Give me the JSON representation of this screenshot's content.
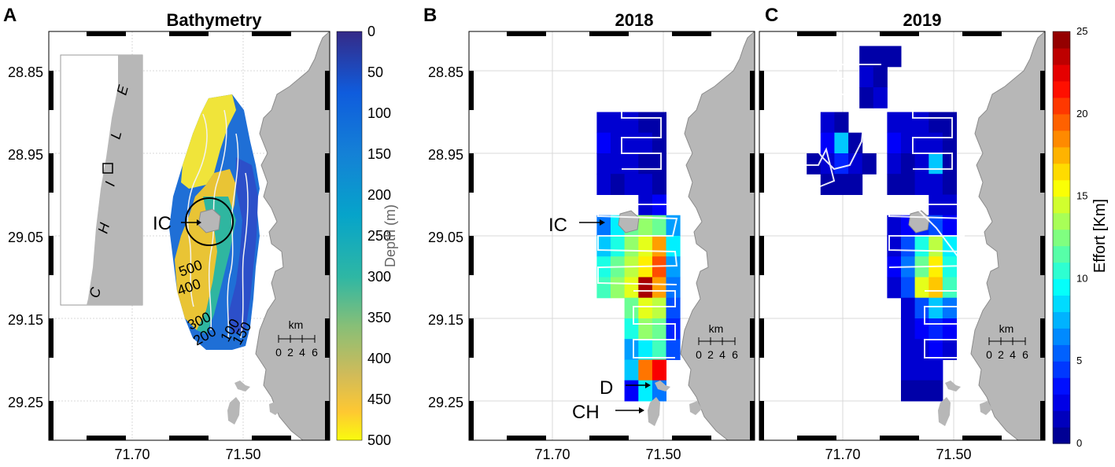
{
  "panels": {
    "a": {
      "letter": "A",
      "title": "Bathymetry"
    },
    "b": {
      "letter": "B",
      "title": "2018"
    },
    "c": {
      "letter": "C",
      "title": "2019"
    }
  },
  "inset": {
    "letters": [
      "E",
      "L",
      "I",
      "H",
      "C"
    ]
  },
  "labels": {
    "ic": "IC",
    "d": "D",
    "ch": "CH"
  },
  "scalebar": {
    "unit": "km",
    "ticks": [
      "0",
      "2",
      "4",
      "6"
    ]
  },
  "colors": {
    "land": "#b7b7b7",
    "coast": "#8c8c8c",
    "grid": "#d9d9d9",
    "contour": "#f2f2f2"
  },
  "chart_data": [
    {
      "type": "heatmap",
      "panel": "A",
      "title": "Bathymetry",
      "colorbar_label": "Depth (m)",
      "colorbar_ticks": [
        "0",
        "50",
        "100",
        "150",
        "200",
        "250",
        "300",
        "350",
        "400",
        "450",
        "500"
      ],
      "colorbar_range": [
        0,
        500
      ],
      "colorbar_reversed": true,
      "colormap": "parula",
      "contour_labels": [
        "500",
        "400",
        "300",
        "200",
        "100",
        "150"
      ],
      "x_ticks": [
        "71.70",
        "71.50"
      ],
      "y_ticks": [
        "28.85",
        "28.95",
        "29.05",
        "29.15",
        "29.25"
      ]
    },
    {
      "type": "heatmap",
      "panel": "B",
      "title": "2018",
      "x_ticks": [
        "71.70",
        "71.50"
      ],
      "y_ticks": [
        "28.85",
        "28.95",
        "29.05",
        "29.15",
        "29.25"
      ],
      "colormap": "jet",
      "value_range": [
        0,
        25
      ],
      "lat_start": 28.9,
      "lon_start": 71.62,
      "cell_deg": 0.025,
      "rows": [
        [
          2,
          2,
          2,
          1,
          1,
          null,
          null
        ],
        [
          3,
          2,
          2,
          2,
          1,
          null,
          null
        ],
        [
          2,
          2,
          2,
          1,
          1,
          null,
          null
        ],
        [
          2,
          1,
          2,
          2,
          1,
          null,
          null
        ],
        [
          null,
          null,
          null,
          2,
          3,
          null,
          null
        ],
        [
          6,
          9,
          12,
          13,
          12,
          7,
          null
        ],
        [
          8,
          10,
          13,
          15,
          18,
          9,
          null
        ],
        [
          10,
          12,
          14,
          16,
          20,
          7,
          null
        ],
        [
          11,
          13,
          15,
          24,
          18,
          6,
          null
        ],
        [
          null,
          null,
          12,
          15,
          14,
          5,
          null
        ],
        [
          null,
          null,
          10,
          13,
          12,
          4,
          null
        ],
        [
          null,
          null,
          7,
          9,
          11,
          5,
          null
        ],
        [
          null,
          null,
          8,
          19,
          22,
          null,
          null
        ],
        [
          null,
          null,
          3,
          9,
          6,
          null,
          null
        ]
      ]
    },
    {
      "type": "heatmap",
      "panel": "C",
      "title": "2019",
      "x_ticks": [
        "71.70",
        "71.50"
      ],
      "y_ticks": [
        "28.85",
        "28.95",
        "29.05",
        "29.15",
        "29.25"
      ],
      "colormap": "jet",
      "value_range": [
        0,
        25
      ],
      "colorbar_label": "Effort  [Km]",
      "colorbar_ticks": [
        "0",
        "5",
        "10",
        "15",
        "20",
        "25"
      ],
      "blocks": [
        {
          "lat_start": 28.82,
          "lon_start": 71.695,
          "cell_deg": 0.025,
          "rows": [
            [
              null,
              1,
              1,
              1
            ],
            [
              null,
              2,
              1,
              null
            ],
            [
              null,
              1,
              2,
              null
            ]
          ]
        },
        {
          "lat_start": 28.9,
          "lon_start": 71.765,
          "cell_deg": 0.025,
          "rows": [
            [
              null,
              2,
              1,
              null,
              null
            ],
            [
              null,
              3,
              8,
              1,
              null
            ],
            [
              1,
              2,
              4,
              2,
              1
            ],
            [
              null,
              1,
              1,
              1,
              null
            ]
          ]
        },
        {
          "lat_start": 28.9,
          "lon_start": 71.62,
          "cell_deg": 0.025,
          "rows": [
            [
              2,
              2,
              2,
              1,
              1,
              null
            ],
            [
              3,
              2,
              2,
              2,
              1,
              null
            ],
            [
              2,
              1,
              2,
              8,
              1,
              null
            ],
            [
              1,
              1,
              2,
              2,
              1,
              null
            ],
            [
              null,
              null,
              null,
              2,
              2,
              null
            ],
            [
              2,
              3,
              4,
              5,
              3,
              null
            ],
            [
              2,
              5,
              10,
              14,
              9,
              null
            ],
            [
              3,
              6,
              12,
              16,
              10,
              null
            ],
            [
              2,
              5,
              15,
              17,
              11,
              null
            ],
            [
              null,
              2,
              5,
              8,
              6,
              null
            ],
            [
              null,
              2,
              3,
              4,
              3,
              null
            ],
            [
              null,
              2,
              2,
              3,
              2,
              null
            ],
            [
              null,
              2,
              2,
              2,
              null,
              null
            ],
            [
              null,
              1,
              1,
              1,
              null,
              null
            ]
          ]
        }
      ]
    }
  ]
}
